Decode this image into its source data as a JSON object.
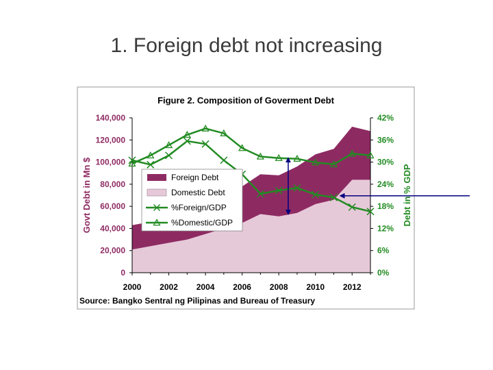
{
  "slide": {
    "title": "1. Foreign debt not increasing"
  },
  "colors": {
    "foreign_area": "#8e2a62",
    "domestic_area": "#e6c9d9",
    "pct_lines": "#228b22",
    "left_axis_text": "#8e2a62",
    "right_axis_text": "#228b22",
    "annotation_arrow": "#000080",
    "chart_border": "#9a9a9a"
  },
  "chart_data": {
    "type": "area",
    "title": "Figure 2. Composition of Goverment Debt",
    "source": "Source: Bangko Sentral ng Pilipinas and Bureau of Treasury",
    "xlabel": "",
    "ylabel": "Govt Debt in Mn $",
    "ylabel_right": "Debt in % GDP",
    "x": [
      2000,
      2001,
      2002,
      2003,
      2004,
      2005,
      2006,
      2007,
      2008,
      2009,
      2010,
      2011,
      2012,
      2013
    ],
    "x_ticks": [
      "2000",
      "2002",
      "2004",
      "2006",
      "2008",
      "2010",
      "2012"
    ],
    "x_tick_values": [
      2000,
      2002,
      2004,
      2006,
      2008,
      2010,
      2012
    ],
    "ylim": [
      0,
      140000
    ],
    "y_ticks": [
      "0",
      "20,000",
      "40,000",
      "60,000",
      "80,000",
      "100,000",
      "120,000",
      "140,000"
    ],
    "y_tick_values": [
      0,
      20000,
      40000,
      60000,
      80000,
      100000,
      120000,
      140000
    ],
    "ylim_right": [
      0,
      42
    ],
    "y_ticks_right": [
      "0%",
      "6%",
      "12%",
      "18%",
      "24%",
      "30%",
      "36%",
      "42%"
    ],
    "y_tick_values_right": [
      0,
      6,
      12,
      18,
      24,
      30,
      36,
      42
    ],
    "stacked_series": [
      {
        "name": "Domestic Debt",
        "values": [
          21000,
          24000,
          27000,
          30000,
          35000,
          40000,
          45000,
          53000,
          51000,
          54000,
          62000,
          66000,
          84000,
          84000
        ]
      },
      {
        "name": "Foreign Debt",
        "values": [
          43000,
          46000,
          52000,
          58000,
          67000,
          73000,
          78000,
          89000,
          88000,
          96000,
          107000,
          112000,
          132000,
          128000
        ]
      }
    ],
    "line_series": [
      {
        "name": "%Foreign/GDP",
        "marker": "x",
        "values": [
          30.5,
          29.3,
          31.8,
          35.7,
          34.9,
          30.5,
          26.7,
          21.4,
          22.3,
          23.0,
          21.2,
          20.4,
          17.8,
          16.6
        ]
      },
      {
        "name": "%Domestic/GDP",
        "marker": "triangle",
        "values": [
          29.6,
          31.8,
          34.6,
          37.4,
          39.1,
          37.8,
          33.8,
          31.5,
          31.1,
          30.9,
          29.9,
          29.4,
          32.3,
          31.8
        ]
      }
    ],
    "legend": {
      "placement": "center-left",
      "entries": [
        "Foreign Debt",
        "Domestic Debt",
        "%Foreign/GDP",
        "%Domestic/GDP"
      ]
    },
    "annotations": {
      "vertical_arrow_at_x": 2009,
      "vertical_arrow_from_y": 16.0,
      "vertical_arrow_to_y": 31.0,
      "horizontal_arrow_target_x": 2011,
      "horizontal_arrow_target_y": 19.0
    },
    "grid": false
  }
}
